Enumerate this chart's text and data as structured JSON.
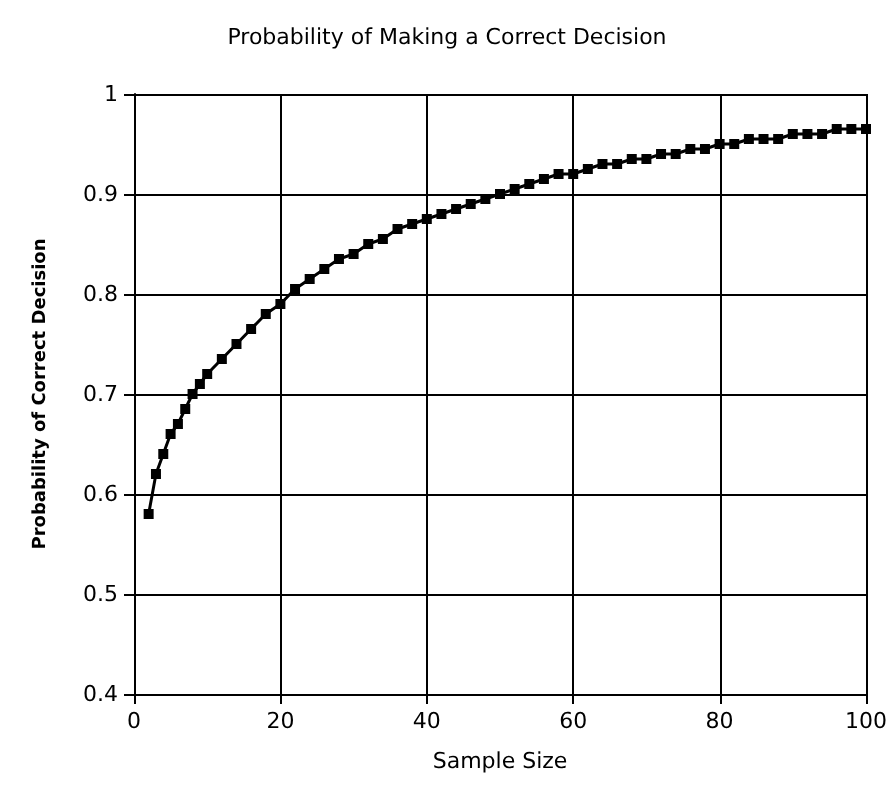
{
  "chart_data": {
    "type": "line",
    "title": "Probability of Making a Correct Decision",
    "xlabel": "Sample Size",
    "ylabel": "Probability of Correct Decision",
    "x": [
      2,
      3,
      4,
      5,
      6,
      7,
      8,
      9,
      10,
      12,
      14,
      16,
      18,
      20,
      22,
      24,
      26,
      28,
      30,
      32,
      34,
      36,
      38,
      40,
      42,
      44,
      46,
      48,
      50,
      52,
      54,
      56,
      58,
      60,
      62,
      64,
      66,
      68,
      70,
      72,
      74,
      76,
      78,
      80,
      82,
      84,
      86,
      88,
      90,
      92,
      94,
      96,
      98,
      100
    ],
    "series": [
      {
        "color": "#000000",
        "values": [
          0.58,
          0.62,
          0.64,
          0.66,
          0.67,
          0.685,
          0.7,
          0.71,
          0.72,
          0.735,
          0.75,
          0.765,
          0.78,
          0.79,
          0.805,
          0.815,
          0.825,
          0.835,
          0.84,
          0.85,
          0.855,
          0.865,
          0.87,
          0.875,
          0.88,
          0.885,
          0.89,
          0.895,
          0.9,
          0.905,
          0.91,
          0.915,
          0.92,
          0.92,
          0.925,
          0.93,
          0.93,
          0.935,
          0.935,
          0.94,
          0.94,
          0.945,
          0.945,
          0.95,
          0.95,
          0.955,
          0.955,
          0.955,
          0.96,
          0.96,
          0.96,
          0.965,
          0.965,
          0.965
        ]
      }
    ],
    "xlim": [
      0,
      100
    ],
    "xticks": [
      0,
      20,
      40,
      60,
      80,
      100
    ],
    "ylim": [
      0.4,
      1
    ],
    "yticks": [
      0.4,
      0.5,
      0.6,
      0.7,
      0.8,
      0.9,
      1
    ],
    "grid": true,
    "marker": "square",
    "line_style": "solid"
  }
}
